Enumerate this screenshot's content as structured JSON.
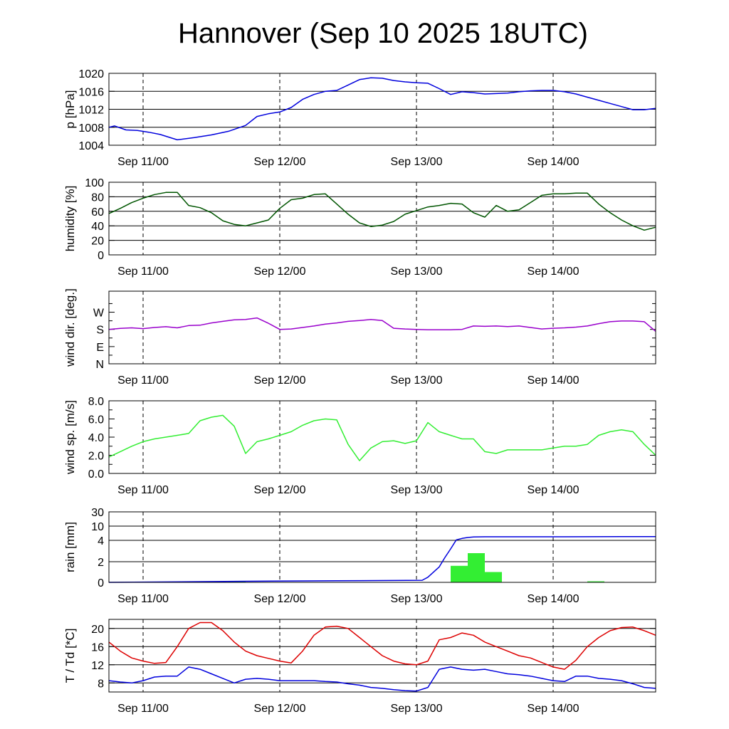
{
  "title": "Hannover (Sep 10 2025 18UTC)",
  "time_axis": {
    "start": "Sep 10 18UTC",
    "end": "Sep 14 18UTC",
    "tick_labels": [
      "Sep 11/00",
      "Sep 12/00",
      "Sep 13/00",
      "Sep 14/00"
    ]
  },
  "colors": {
    "pressure": "#0000dd",
    "humidity": "#005500",
    "wind_dir": "#9900cc",
    "wind_speed": "#33ee33",
    "rain_bars": "#33ee33",
    "rain_sum": "#0000dd",
    "temperature": "#dd0000",
    "dewpoint": "#0000dd"
  },
  "chart_data": [
    {
      "type": "line",
      "ylabel": "p [hPa]",
      "ylim": [
        1004,
        1020
      ],
      "yticks": [
        1004,
        1008,
        1012,
        1016,
        1020
      ],
      "ytick_labels": [
        "1004",
        "1008",
        "1012",
        "1016",
        "1020"
      ],
      "grid": true,
      "x_unit": "hours since Sep 10 18UTC",
      "series": [
        {
          "key": "pressure",
          "x": [
            0,
            1,
            3,
            5,
            7,
            9,
            12,
            15,
            18,
            21,
            24,
            26,
            28,
            30,
            32,
            34,
            36,
            38,
            40,
            42,
            44,
            46,
            48,
            50,
            52,
            54,
            56,
            58,
            60,
            62,
            64,
            66,
            68,
            70,
            72,
            74,
            76,
            78,
            80,
            82,
            84,
            86,
            88,
            90,
            92,
            94,
            96
          ],
          "y": [
            1008,
            1008.3,
            1007.4,
            1007.3,
            1006.9,
            1006.4,
            1005.2,
            1005.7,
            1006.3,
            1007.1,
            1008.4,
            1010.4,
            1011,
            1011.4,
            1012.4,
            1014.2,
            1015.3,
            1016,
            1016.2,
            1017.4,
            1018.6,
            1019,
            1018.9,
            1018.4,
            1018.1,
            1017.9,
            1017.8,
            1016.6,
            1015.3,
            1015.9,
            1015.7,
            1015.4,
            1015.5,
            1015.6,
            1015.9,
            1016.1,
            1016.2,
            1016.2,
            1015.9,
            1015.4,
            1014.7,
            1014,
            1013.3,
            1012.6,
            1011.9,
            1011.9,
            1012.2
          ]
        }
      ]
    },
    {
      "type": "line",
      "ylabel": "humidity [%]",
      "ylim": [
        0,
        100
      ],
      "yticks": [
        0,
        20,
        40,
        60,
        80,
        100
      ],
      "ytick_labels": [
        "0",
        "20",
        "40",
        "60",
        "80",
        "100"
      ],
      "grid": true,
      "series": [
        {
          "key": "humidity",
          "x": [
            0,
            2,
            4,
            6,
            8,
            10,
            12,
            14,
            16,
            18,
            20,
            22,
            24,
            26,
            28,
            30,
            32,
            34,
            36,
            38,
            40,
            42,
            44,
            46,
            48,
            50,
            52,
            54,
            56,
            58,
            60,
            62,
            64,
            66,
            68,
            70,
            72,
            74,
            76,
            78,
            80,
            82,
            84,
            86,
            88,
            90,
            92,
            94,
            96
          ],
          "y": [
            57,
            64,
            72,
            78,
            83,
            86,
            86,
            68,
            65,
            58,
            47,
            42,
            40,
            44,
            48,
            64,
            76,
            78,
            83,
            84,
            70,
            56,
            44,
            39,
            41,
            46,
            56,
            61,
            66,
            68,
            71,
            70,
            58,
            52,
            68,
            60,
            62,
            72,
            82,
            84,
            84,
            85,
            85,
            70,
            58,
            48,
            40,
            34,
            38
          ]
        }
      ]
    },
    {
      "type": "line",
      "ylabel": "wind dir. [deg.]",
      "ylim": [
        0,
        380
      ],
      "yticks": [
        0,
        90,
        180,
        270
      ],
      "ytick_labels": [
        "N",
        "E",
        "S",
        "W"
      ],
      "grid": false,
      "series": [
        {
          "key": "wind_dir",
          "x": [
            0,
            2,
            4,
            6,
            8,
            10,
            12,
            14,
            16,
            18,
            20,
            22,
            24,
            26,
            28,
            30,
            32,
            34,
            36,
            38,
            40,
            42,
            44,
            46,
            48,
            50,
            52,
            54,
            56,
            58,
            60,
            62,
            64,
            66,
            68,
            70,
            72,
            74,
            76,
            78,
            80,
            82,
            84,
            86,
            88,
            90,
            92,
            94,
            96
          ],
          "y": [
            180,
            185,
            188,
            184,
            190,
            194,
            188,
            200,
            202,
            214,
            222,
            230,
            232,
            240,
            212,
            180,
            182,
            190,
            198,
            208,
            214,
            222,
            226,
            232,
            226,
            186,
            182,
            180,
            178,
            178,
            178,
            180,
            198,
            196,
            198,
            195,
            198,
            190,
            182,
            186,
            188,
            192,
            198,
            210,
            220,
            224,
            224,
            220,
            170
          ]
        }
      ]
    },
    {
      "type": "line",
      "ylabel": "wind sp. [m/s]",
      "ylim": [
        0,
        8
      ],
      "yticks": [
        0,
        2,
        4,
        6,
        8
      ],
      "ytick_labels": [
        "0.0",
        "2.0",
        "4.0",
        "6.0",
        "8.0"
      ],
      "grid": false,
      "series": [
        {
          "key": "wind_speed",
          "x": [
            0,
            2,
            4,
            6,
            8,
            10,
            12,
            14,
            16,
            18,
            20,
            22,
            24,
            26,
            28,
            30,
            32,
            34,
            36,
            38,
            40,
            42,
            44,
            46,
            48,
            50,
            52,
            54,
            56,
            58,
            60,
            62,
            64,
            66,
            68,
            70,
            72,
            74,
            76,
            78,
            80,
            82,
            84,
            86,
            88,
            90,
            92,
            94,
            96
          ],
          "y": [
            1.8,
            2.4,
            3.0,
            3.5,
            3.8,
            4.0,
            4.2,
            4.4,
            5.8,
            6.2,
            6.4,
            5.2,
            2.2,
            3.5,
            3.8,
            4.2,
            4.6,
            5.3,
            5.8,
            6.0,
            5.9,
            3.2,
            1.4,
            2.8,
            3.5,
            3.6,
            3.3,
            3.6,
            5.6,
            4.6,
            4.2,
            3.8,
            3.8,
            2.4,
            2.2,
            2.6,
            2.6,
            2.6,
            2.6,
            2.8,
            3.0,
            3.0,
            3.2,
            4.2,
            4.6,
            4.8,
            4.6,
            3.2,
            2.0
          ]
        }
      ]
    },
    {
      "type": "bar",
      "ylabel": "rain [mm]",
      "ylim": [
        0,
        30
      ],
      "yscale": "stretched",
      "yticks": [
        0,
        2,
        4,
        10,
        30
      ],
      "ytick_labels": [
        "0",
        "2",
        "4",
        "10",
        "30"
      ],
      "grid": true,
      "bars": {
        "key": "rain_bars",
        "x_start": [
          21,
          60,
          63,
          66,
          84
        ],
        "x_end": [
          24,
          63,
          66,
          69,
          87
        ],
        "values": [
          0.1,
          1.6,
          2.8,
          1.0,
          0.1
        ]
      },
      "series": [
        {
          "key": "rain_sum",
          "x": [
            0,
            24,
            40,
            55,
            56,
            58,
            59,
            60,
            61,
            62,
            63,
            64,
            66,
            70,
            80,
            90,
            96
          ],
          "y": [
            0,
            0.1,
            0.15,
            0.2,
            0.5,
            1.5,
            2.4,
            3.2,
            4.2,
            4.8,
            5.2,
            5.4,
            5.5,
            5.5,
            5.5,
            5.6,
            5.6
          ]
        }
      ]
    },
    {
      "type": "line",
      "ylabel": "T / Td [*C]",
      "ylim": [
        6,
        22
      ],
      "yticks": [
        8,
        12,
        16,
        20
      ],
      "ytick_labels": [
        "8",
        "12",
        "16",
        "20"
      ],
      "grid": true,
      "series": [
        {
          "key": "temperature",
          "x": [
            0,
            2,
            4,
            6,
            8,
            10,
            12,
            14,
            16,
            18,
            20,
            22,
            24,
            26,
            28,
            30,
            32,
            34,
            36,
            38,
            40,
            42,
            44,
            46,
            48,
            50,
            52,
            54,
            56,
            58,
            60,
            62,
            64,
            66,
            68,
            70,
            72,
            74,
            76,
            78,
            80,
            82,
            84,
            86,
            88,
            90,
            92,
            94,
            96
          ],
          "y": [
            17,
            15,
            13.5,
            12.8,
            12.3,
            12.5,
            16,
            20,
            21.3,
            21.3,
            19.5,
            17,
            15,
            14,
            13.4,
            12.8,
            12.4,
            15,
            18.5,
            20.3,
            20.5,
            20,
            18,
            16,
            14,
            12.8,
            12.2,
            12,
            12.8,
            17.5,
            18,
            19,
            18.5,
            17,
            16,
            15,
            14,
            13.5,
            12.5,
            11.5,
            11,
            13,
            16,
            18,
            19.5,
            20.2,
            20.3,
            19.5,
            18.5
          ]
        },
        {
          "key": "dewpoint",
          "x": [
            0,
            2,
            4,
            6,
            8,
            10,
            12,
            14,
            16,
            18,
            20,
            22,
            24,
            26,
            28,
            30,
            32,
            34,
            36,
            38,
            40,
            42,
            44,
            46,
            48,
            50,
            52,
            54,
            56,
            58,
            60,
            62,
            64,
            66,
            68,
            70,
            72,
            74,
            76,
            78,
            80,
            82,
            84,
            86,
            88,
            90,
            92,
            94,
            96
          ],
          "y": [
            8.5,
            8.2,
            8.0,
            8.5,
            9.3,
            9.5,
            9.5,
            11.5,
            11.0,
            10.0,
            9.0,
            8.0,
            8.8,
            9.0,
            8.8,
            8.5,
            8.5,
            8.5,
            8.5,
            8.3,
            8.2,
            7.8,
            7.5,
            7.0,
            6.8,
            6.5,
            6.3,
            6.2,
            7.0,
            11.0,
            11.5,
            11.0,
            10.8,
            11.0,
            10.5,
            10.0,
            9.8,
            9.5,
            9.0,
            8.5,
            8.3,
            9.5,
            9.5,
            9.0,
            8.8,
            8.5,
            7.8,
            7.0,
            6.8
          ]
        }
      ]
    }
  ]
}
